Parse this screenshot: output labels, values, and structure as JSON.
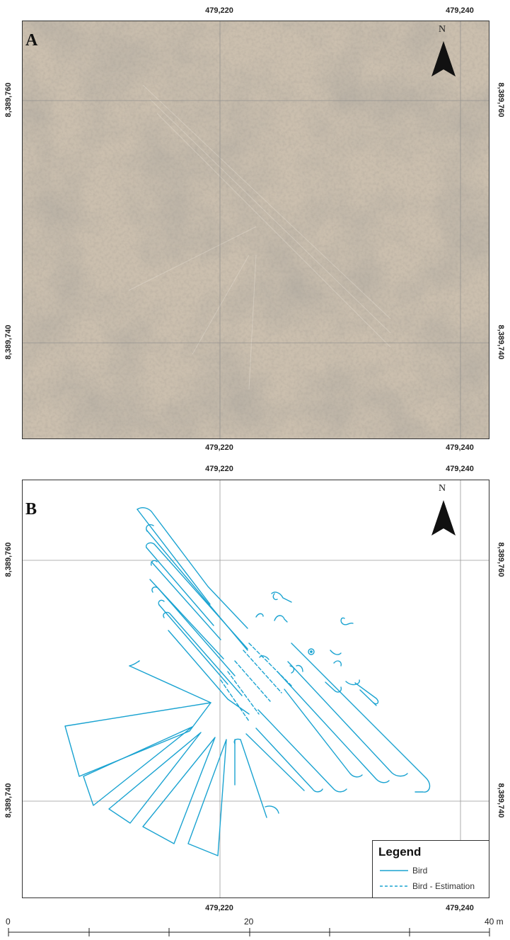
{
  "panels": {
    "a": {
      "letter": "A"
    },
    "b": {
      "letter": "B"
    }
  },
  "north_label": "N",
  "coords": {
    "x_left": "479,220",
    "x_right": "479,240",
    "y_top": "8,389,760",
    "y_bottom": "8,389,740"
  },
  "legend": {
    "title": "Legend",
    "items": [
      {
        "label": "Bird",
        "style": "solid"
      },
      {
        "label": "Bird - Estimation",
        "style": "dashed"
      }
    ]
  },
  "scale_bar": {
    "labels": [
      "0",
      "20",
      "40 m"
    ]
  },
  "colors": {
    "line": "#1aa3d1",
    "grid": "#9a9a9a",
    "frame": "#333333",
    "terrain": "#c8bba8"
  }
}
